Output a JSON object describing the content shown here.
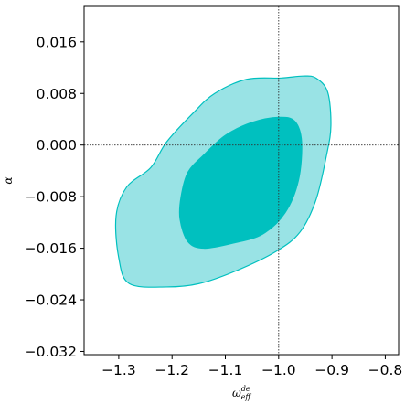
{
  "chart_data": {
    "type": "contour",
    "title": "",
    "xlabel": "ω",
    "xlabel_sup": "de",
    "xlabel_sub": "eff",
    "ylabel": "α",
    "xlim": [
      -1.365,
      -0.775
    ],
    "ylim": [
      -0.0325,
      0.0215
    ],
    "xticks": [
      -1.3,
      -1.2,
      -1.1,
      -1.0,
      -0.9,
      -0.8
    ],
    "xtick_labels": [
      "−1.3",
      "−1.2",
      "−1.1",
      "−1.0",
      "−0.9",
      "−0.8"
    ],
    "yticks": [
      0.016,
      0.008,
      0.0,
      -0.008,
      -0.016,
      -0.024,
      -0.032
    ],
    "ytick_labels": [
      "0.016",
      "0.008",
      "0.000",
      "−0.008",
      "−0.016",
      "−0.024",
      "−0.032"
    ],
    "grid": false,
    "reference_lines": {
      "x": -1.0,
      "y": 0.0
    },
    "colors": {
      "outer_fill": "#99e3e5",
      "inner_fill": "#00c0bf",
      "edge": "#00c0bf",
      "reference": "#333333"
    },
    "contours": [
      {
        "level": "outer",
        "points": [
          [
            -1.24,
            -0.0035
          ],
          [
            -1.21,
            0.0005
          ],
          [
            -1.16,
            0.005
          ],
          [
            -1.12,
            0.008
          ],
          [
            -1.06,
            0.0102
          ],
          [
            -0.995,
            0.0104
          ],
          [
            -0.955,
            0.0107
          ],
          [
            -0.93,
            0.0104
          ],
          [
            -0.908,
            0.0082
          ],
          [
            -0.902,
            0.003
          ],
          [
            -0.91,
            -0.0015
          ],
          [
            -0.93,
            -0.0085
          ],
          [
            -0.96,
            -0.0135
          ],
          [
            -1.005,
            -0.0165
          ],
          [
            -1.08,
            -0.0195
          ],
          [
            -1.15,
            -0.0215
          ],
          [
            -1.21,
            -0.022
          ],
          [
            -1.28,
            -0.0215
          ],
          [
            -1.3,
            -0.0175
          ],
          [
            -1.305,
            -0.011
          ],
          [
            -1.285,
            -0.0065
          ]
        ]
      },
      {
        "level": "inner",
        "points": [
          [
            -1.17,
            -0.0042
          ],
          [
            -1.14,
            -0.0015
          ],
          [
            -1.1,
            0.0015
          ],
          [
            -1.05,
            0.0035
          ],
          [
            -1.0,
            0.0043
          ],
          [
            -0.97,
            0.0037
          ],
          [
            -0.957,
            0.0005
          ],
          [
            -0.963,
            -0.0055
          ],
          [
            -0.988,
            -0.0105
          ],
          [
            -1.03,
            -0.0138
          ],
          [
            -1.085,
            -0.0152
          ],
          [
            -1.14,
            -0.016
          ],
          [
            -1.17,
            -0.015
          ],
          [
            -1.185,
            -0.0115
          ],
          [
            -1.183,
            -0.008
          ]
        ]
      }
    ]
  }
}
